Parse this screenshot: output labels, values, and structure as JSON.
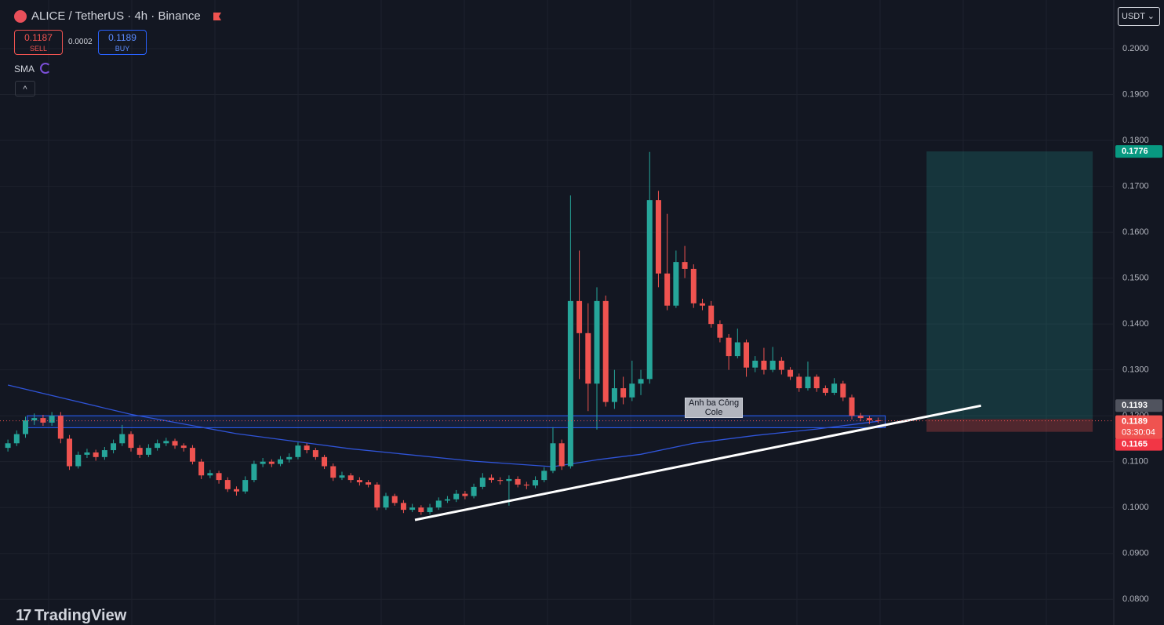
{
  "chart_data": {
    "type": "candlestick",
    "title": "ALICE / TetherUS · 4h · Binance",
    "sell": {
      "value": 0.1187,
      "label": "SELL"
    },
    "spread": 0.0002,
    "buy": {
      "value": 0.1189,
      "label": "BUY"
    },
    "indicator": "SMA",
    "currency": "USDT",
    "brand": "TradingView",
    "up_color": "#26a69a",
    "down_color": "#ef5350",
    "ylim": [
      0.0744,
      0.2106
    ],
    "xlim": [
      -0.9,
      125.8
    ],
    "yticks": [
      {
        "value": 0.08,
        "label": "0.0800"
      },
      {
        "value": 0.09,
        "label": "0.0900"
      },
      {
        "value": 0.1,
        "label": "0.1000"
      },
      {
        "value": 0.11,
        "label": "0.1100"
      },
      {
        "value": 0.12,
        "label": "0.1200"
      },
      {
        "value": 0.13,
        "label": "0.1300"
      },
      {
        "value": 0.14,
        "label": "0.1400"
      },
      {
        "value": 0.15,
        "label": "0.1500"
      },
      {
        "value": 0.16,
        "label": "0.1600"
      },
      {
        "value": 0.17,
        "label": "0.1700"
      },
      {
        "value": 0.18,
        "label": "0.1800"
      },
      {
        "value": 0.19,
        "label": "0.1900"
      },
      {
        "value": 0.2,
        "label": "0.2000"
      }
    ],
    "grid": true,
    "candles": [
      [
        0.113,
        0.1148,
        0.1122,
        0.114
      ],
      [
        0.114,
        0.1168,
        0.1134,
        0.116
      ],
      [
        0.116,
        0.1198,
        0.1152,
        0.119
      ],
      [
        0.119,
        0.1205,
        0.118,
        0.1195
      ],
      [
        0.1195,
        0.1202,
        0.1178,
        0.1185
      ],
      [
        0.1185,
        0.1208,
        0.1178,
        0.12
      ],
      [
        0.12,
        0.1208,
        0.114,
        0.115
      ],
      [
        0.115,
        0.1158,
        0.1082,
        0.109
      ],
      [
        0.109,
        0.1122,
        0.1085,
        0.1115
      ],
      [
        0.1115,
        0.1128,
        0.1108,
        0.112
      ],
      [
        0.112,
        0.1126,
        0.1102,
        0.111
      ],
      [
        0.111,
        0.1132,
        0.1104,
        0.1125
      ],
      [
        0.1125,
        0.1148,
        0.1118,
        0.114
      ],
      [
        0.114,
        0.118,
        0.1134,
        0.116
      ],
      [
        0.116,
        0.1166,
        0.1122,
        0.113
      ],
      [
        0.113,
        0.1136,
        0.1108,
        0.1115
      ],
      [
        0.1115,
        0.1138,
        0.111,
        0.113
      ],
      [
        0.113,
        0.1148,
        0.1124,
        0.114
      ],
      [
        0.114,
        0.1152,
        0.1134,
        0.1145
      ],
      [
        0.1145,
        0.115,
        0.1128,
        0.1135
      ],
      [
        0.1135,
        0.114,
        0.1122,
        0.113
      ],
      [
        0.113,
        0.1136,
        0.1094,
        0.11
      ],
      [
        0.11,
        0.1106,
        0.1062,
        0.107
      ],
      [
        0.107,
        0.1082,
        0.1064,
        0.1075
      ],
      [
        0.1075,
        0.108,
        0.1052,
        0.106
      ],
      [
        0.106,
        0.1066,
        0.1034,
        0.104
      ],
      [
        0.104,
        0.1046,
        0.1026,
        0.1035
      ],
      [
        0.1035,
        0.1068,
        0.103,
        0.106
      ],
      [
        0.106,
        0.1102,
        0.1055,
        0.1095
      ],
      [
        0.1095,
        0.1108,
        0.1088,
        0.11
      ],
      [
        0.11,
        0.1105,
        0.1088,
        0.1095
      ],
      [
        0.1095,
        0.1112,
        0.109,
        0.1105
      ],
      [
        0.1105,
        0.1118,
        0.1098,
        0.111
      ],
      [
        0.111,
        0.1142,
        0.1105,
        0.1135
      ],
      [
        0.1135,
        0.114,
        0.1118,
        0.1125
      ],
      [
        0.1125,
        0.113,
        0.1104,
        0.111
      ],
      [
        0.111,
        0.1115,
        0.1084,
        0.109
      ],
      [
        0.109,
        0.1096,
        0.1058,
        0.1065
      ],
      [
        0.1065,
        0.1078,
        0.106,
        0.107
      ],
      [
        0.107,
        0.1075,
        0.1054,
        0.106
      ],
      [
        0.106,
        0.1066,
        0.1048,
        0.1055
      ],
      [
        0.1055,
        0.106,
        0.1044,
        0.105
      ],
      [
        0.105,
        0.1055,
        0.0994,
        0.1
      ],
      [
        0.1,
        0.1032,
        0.0995,
        0.1025
      ],
      [
        0.1025,
        0.103,
        0.1004,
        0.101
      ],
      [
        0.101,
        0.1016,
        0.0988,
        0.0995
      ],
      [
        0.0995,
        0.1008,
        0.099,
        0.1
      ],
      [
        0.1,
        0.1005,
        0.0984,
        0.099
      ],
      [
        0.099,
        0.1008,
        0.0985,
        0.1
      ],
      [
        0.1,
        0.1022,
        0.0995,
        0.1015
      ],
      [
        0.1015,
        0.1025,
        0.101,
        0.1018
      ],
      [
        0.1018,
        0.1038,
        0.1012,
        0.103
      ],
      [
        0.103,
        0.1036,
        0.1018,
        0.1025
      ],
      [
        0.1025,
        0.1052,
        0.102,
        0.1045
      ],
      [
        0.1045,
        0.1075,
        0.104,
        0.1065
      ],
      [
        0.1065,
        0.1072,
        0.1054,
        0.106
      ],
      [
        0.106,
        0.1066,
        0.105,
        0.1058
      ],
      [
        0.1058,
        0.107,
        0.1004,
        0.1062
      ],
      [
        0.1062,
        0.1068,
        0.1044,
        0.105
      ],
      [
        0.105,
        0.1056,
        0.104,
        0.1048
      ],
      [
        0.1048,
        0.1068,
        0.1042,
        0.106
      ],
      [
        0.106,
        0.1088,
        0.1055,
        0.108
      ],
      [
        0.108,
        0.1175,
        0.1075,
        0.114
      ],
      [
        0.114,
        0.1148,
        0.1082,
        0.109
      ],
      [
        0.109,
        0.168,
        0.1085,
        0.145
      ],
      [
        0.145,
        0.156,
        0.128,
        0.138
      ],
      [
        0.138,
        0.1445,
        0.121,
        0.127
      ],
      [
        0.127,
        0.148,
        0.117,
        0.145
      ],
      [
        0.145,
        0.1462,
        0.122,
        0.123
      ],
      [
        0.123,
        0.13,
        0.1215,
        0.126
      ],
      [
        0.126,
        0.1285,
        0.1225,
        0.124
      ],
      [
        0.124,
        0.132,
        0.1232,
        0.127
      ],
      [
        0.127,
        0.13,
        0.1245,
        0.128
      ],
      [
        0.128,
        0.1775,
        0.127,
        0.167
      ],
      [
        0.167,
        0.169,
        0.148,
        0.151
      ],
      [
        0.151,
        0.164,
        0.143,
        0.144
      ],
      [
        0.144,
        0.156,
        0.1435,
        0.1535
      ],
      [
        0.1535,
        0.157,
        0.15,
        0.152
      ],
      [
        0.152,
        0.153,
        0.1435,
        0.1445
      ],
      [
        0.1445,
        0.1455,
        0.143,
        0.144
      ],
      [
        0.144,
        0.145,
        0.1392,
        0.14
      ],
      [
        0.14,
        0.1408,
        0.136,
        0.137
      ],
      [
        0.137,
        0.1378,
        0.13,
        0.133
      ],
      [
        0.133,
        0.139,
        0.1325,
        0.136
      ],
      [
        0.136,
        0.1366,
        0.1285,
        0.1305
      ],
      [
        0.1305,
        0.133,
        0.1295,
        0.132
      ],
      [
        0.132,
        0.1348,
        0.129,
        0.13
      ],
      [
        0.13,
        0.135,
        0.1295,
        0.132
      ],
      [
        0.132,
        0.1328,
        0.129,
        0.13
      ],
      [
        0.13,
        0.1306,
        0.1278,
        0.1285
      ],
      [
        0.1285,
        0.1292,
        0.1252,
        0.126
      ],
      [
        0.126,
        0.1318,
        0.1255,
        0.1285
      ],
      [
        0.1285,
        0.129,
        0.1252,
        0.126
      ],
      [
        0.126,
        0.1266,
        0.1244,
        0.125
      ],
      [
        0.125,
        0.1282,
        0.1245,
        0.127
      ],
      [
        0.127,
        0.1276,
        0.1232,
        0.124
      ],
      [
        0.124,
        0.1246,
        0.1192,
        0.12
      ],
      [
        0.12,
        0.1206,
        0.1188,
        0.1195
      ],
      [
        0.1195,
        0.12,
        0.1182,
        0.119
      ],
      [
        0.119,
        0.1196,
        0.1184,
        0.1189
      ]
    ],
    "sma": {
      "color": "#2f54d8",
      "x": [
        0,
        14,
        26,
        39,
        53,
        62,
        67,
        72,
        78,
        85,
        92,
        99
      ],
      "values": [
        0.1267,
        0.1203,
        0.1161,
        0.1128,
        0.1101,
        0.1089,
        0.1104,
        0.1116,
        0.114,
        0.1157,
        0.1171,
        0.1188
      ]
    },
    "zone": {
      "x": [
        2.2,
        99.8
      ],
      "top": 0.12,
      "bottom": 0.1174
    },
    "trendline": {
      "x": [
        46.3,
        110.7
      ],
      "values": [
        0.0973,
        0.1222
      ]
    },
    "annotation": {
      "text": "Anh ba Công Cole",
      "x": 80.3,
      "y": 0.1217
    },
    "long_position": {
      "x": [
        104.5,
        123.4
      ],
      "target": 0.1776,
      "entry": 0.1193,
      "stop": 0.1165
    },
    "last_price": 0.1189,
    "countdown": "03:30:04"
  }
}
